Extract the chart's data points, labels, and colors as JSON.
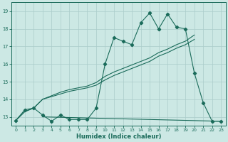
{
  "xlabel": "Humidex (Indice chaleur)",
  "bg_color": "#cce8e4",
  "grid_color": "#aaccca",
  "line_color": "#1a6b5a",
  "xlim": [
    -0.5,
    23.5
  ],
  "ylim": [
    12.5,
    19.5
  ],
  "yticks": [
    13,
    14,
    15,
    16,
    17,
    18,
    19
  ],
  "xticks": [
    0,
    1,
    2,
    3,
    4,
    5,
    6,
    7,
    8,
    9,
    10,
    11,
    12,
    13,
    14,
    15,
    16,
    17,
    18,
    19,
    20,
    21,
    22,
    23
  ],
  "s1_x": [
    0,
    1,
    2,
    3,
    4,
    5,
    6,
    7,
    8,
    9,
    10,
    11,
    12,
    13,
    14,
    15,
    16,
    17,
    18,
    19,
    20,
    21,
    22,
    23
  ],
  "s1_y": [
    12.8,
    13.4,
    13.5,
    13.1,
    12.75,
    13.1,
    12.85,
    12.85,
    12.85,
    13.5,
    16.0,
    17.5,
    17.3,
    17.1,
    18.35,
    18.9,
    18.0,
    18.85,
    18.1,
    18.0,
    15.5,
    13.8,
    12.75,
    12.75
  ],
  "s2_x": [
    0,
    1,
    2,
    3,
    4,
    5,
    6,
    7,
    8,
    9,
    10,
    11,
    12,
    13,
    14,
    15,
    16,
    17,
    18,
    19,
    20
  ],
  "s2_y": [
    12.8,
    13.3,
    13.5,
    14.0,
    14.15,
    14.3,
    14.45,
    14.55,
    14.65,
    14.8,
    15.1,
    15.35,
    15.55,
    15.75,
    15.95,
    16.15,
    16.45,
    16.65,
    16.9,
    17.1,
    17.4
  ],
  "s3_x": [
    0,
    1,
    2,
    3,
    4,
    5,
    6,
    7,
    8,
    9,
    10,
    11,
    12,
    13,
    14,
    15,
    16,
    17,
    18,
    19,
    20
  ],
  "s3_y": [
    12.8,
    13.3,
    13.5,
    14.0,
    14.2,
    14.4,
    14.55,
    14.65,
    14.75,
    14.95,
    15.3,
    15.55,
    15.75,
    15.95,
    16.15,
    16.35,
    16.65,
    16.85,
    17.1,
    17.3,
    17.65
  ],
  "baseline_x": [
    3,
    23
  ],
  "baseline_y": [
    13.0,
    12.75
  ]
}
